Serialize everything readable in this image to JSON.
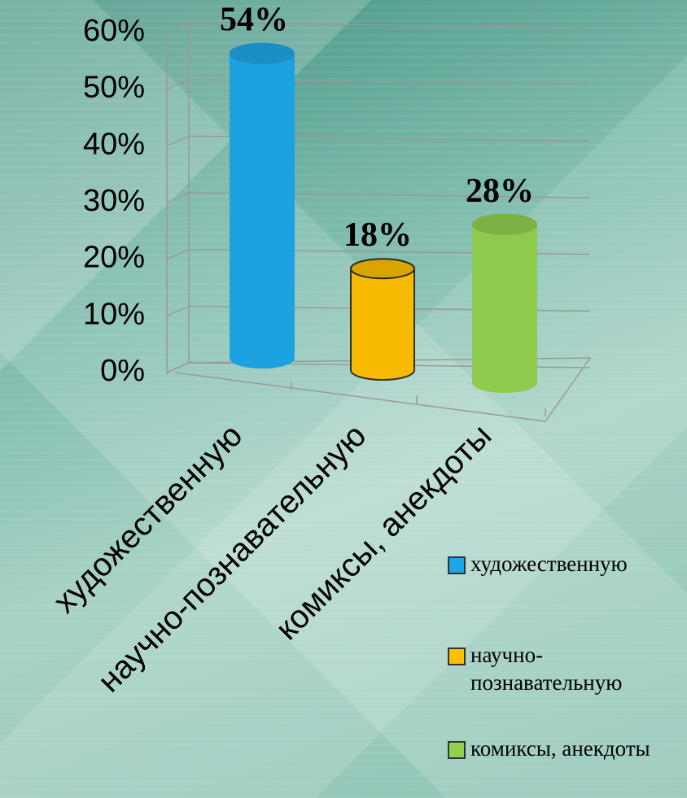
{
  "chart_data": {
    "type": "bar3d",
    "categories": [
      "художественную",
      "научно-познавательную",
      "комиксы, анекдоты"
    ],
    "values": [
      54,
      18,
      28
    ],
    "value_labels": [
      "54%",
      "18%",
      "28%"
    ],
    "colors": [
      "#1ea7e8",
      "#ffc000",
      "#92d050"
    ],
    "ylim": [
      0,
      60
    ],
    "yticks": [
      {
        "value": 0,
        "label": "0%"
      },
      {
        "value": 10,
        "label": "10%"
      },
      {
        "value": 20,
        "label": "20%"
      },
      {
        "value": 30,
        "label": "30%"
      },
      {
        "value": 40,
        "label": "40%"
      },
      {
        "value": 50,
        "label": "50%"
      },
      {
        "value": 60,
        "label": "60%"
      }
    ],
    "grid": true,
    "legend": "right"
  }
}
